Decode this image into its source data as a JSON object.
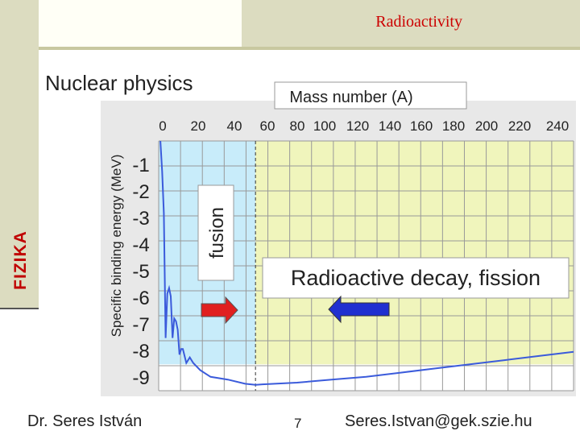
{
  "header": {
    "title": "Radioactivity",
    "subtitle": "Nuclear physics",
    "brand": "FIZIKA"
  },
  "footer": {
    "author": "Dr. Seres István",
    "page": "7",
    "email": "Seres.Istvan@gek.szie.hu"
  },
  "colors": {
    "fusion_region": "#c8ecfa",
    "decay_region": "#f0f5bc",
    "curve": "#3b5bdb",
    "fusion_arrow": "#e02020",
    "decay_arrow": "#2030d0",
    "accent": "#cc0000"
  },
  "chart_data": {
    "type": "line",
    "title": "",
    "xlabel": "Mass number (A)",
    "ylabel": "Specific binding energy (MeV)",
    "xlim": [
      0,
      240
    ],
    "ylim": [
      -9,
      0
    ],
    "x_ticks": [
      "0",
      "20",
      "40",
      "60",
      "80",
      "100",
      "120",
      "140",
      "160",
      "180",
      "200",
      "220",
      "240"
    ],
    "y_ticks": [
      "-1",
      "-2",
      "-3",
      "-4",
      "-5",
      "-6",
      "-7",
      "-8",
      "-9"
    ],
    "series": [
      {
        "x": [
          1,
          2,
          3,
          4,
          5,
          6,
          7,
          8,
          9,
          10,
          11,
          12,
          13,
          14,
          16,
          18,
          20,
          24,
          30,
          40,
          50,
          56,
          60,
          80,
          100,
          120,
          140,
          160,
          180,
          200,
          220,
          240
        ],
        "y": [
          0,
          -1.1,
          -2.6,
          -7.1,
          -5.5,
          -5.3,
          -5.6,
          -7.1,
          -6.4,
          -6.5,
          -6.8,
          -7.7,
          -7.5,
          -7.5,
          -8.0,
          -7.8,
          -8.0,
          -8.26,
          -8.5,
          -8.6,
          -8.75,
          -8.79,
          -8.77,
          -8.71,
          -8.6,
          -8.5,
          -8.35,
          -8.2,
          -8.05,
          -7.9,
          -7.75,
          -7.6
        ]
      }
    ],
    "regions": [
      {
        "label": "fusion",
        "x_range": [
          0,
          56
        ]
      },
      {
        "label": "Radioactive decay, fission",
        "x_range": [
          56,
          240
        ]
      }
    ],
    "grid": true
  }
}
